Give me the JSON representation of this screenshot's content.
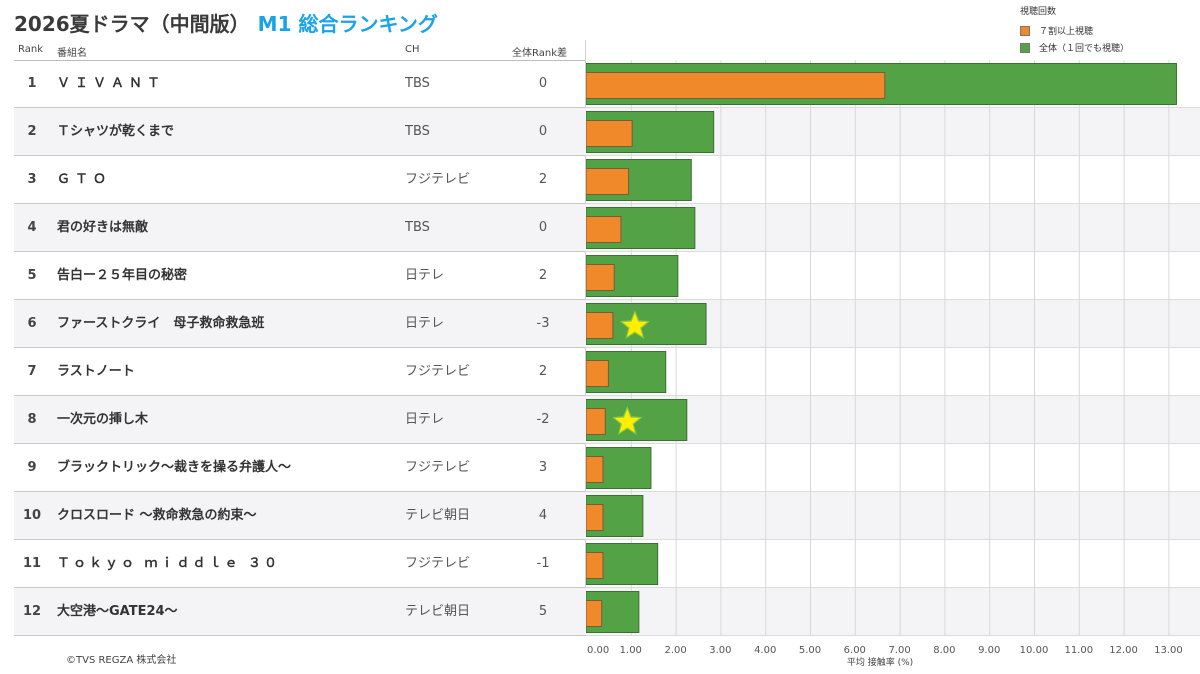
{
  "title": {
    "main": "2026夏ドラマ（中間版）",
    "accent": "M1 総合ランキング"
  },
  "legend": {
    "title": "視聴回数",
    "items": [
      {
        "label": "７割以上視聴",
        "color": "#f0892a"
      },
      {
        "label": "全体（１回でも視聴）",
        "color": "#54a246"
      }
    ]
  },
  "headers": {
    "rank": "Rank",
    "name": "番組名",
    "ch": "CH",
    "diff": "全体Rank差"
  },
  "rows": [
    {
      "rank": "1",
      "name": "ＶＩＶＡＮＴ",
      "ch": "TBS",
      "diff": "0"
    },
    {
      "rank": "2",
      "name": "Ｔシャツが乾くまで",
      "ch": "TBS",
      "diff": "0"
    },
    {
      "rank": "3",
      "name": "ＧＴＯ",
      "ch": "フジテレビ",
      "diff": "2"
    },
    {
      "rank": "4",
      "name": "君の好きは無敵",
      "ch": "TBS",
      "diff": "0"
    },
    {
      "rank": "5",
      "name": "告白ー２５年目の秘密",
      "ch": "日テレ",
      "diff": "2"
    },
    {
      "rank": "6",
      "name": "ファーストクライ　母子救命救急班",
      "ch": "日テレ",
      "diff": "-3"
    },
    {
      "rank": "7",
      "name": "ラストノート",
      "ch": "フジテレビ",
      "diff": "2"
    },
    {
      "rank": "8",
      "name": "一次元の挿し木",
      "ch": "日テレ",
      "diff": "-2"
    },
    {
      "rank": "9",
      "name": "ブラックトリック～裁きを操る弁護人～",
      "ch": "フジテレビ",
      "diff": "3"
    },
    {
      "rank": "10",
      "name": "クロスロード ～救命救急の約束～",
      "ch": "テレビ朝日",
      "diff": "4"
    },
    {
      "rank": "11",
      "name": "Ｔｏｋｙｏ ｍｉｄｄｌｅ ３０",
      "ch": "フジテレビ",
      "diff": "-1"
    },
    {
      "rank": "12",
      "name": "大空港～GATE24～",
      "ch": "テレビ朝日",
      "diff": "5"
    }
  ],
  "chart_data": {
    "type": "bar",
    "orientation": "horizontal",
    "xlabel": "平均 接触率 (%)",
    "xlim": [
      0,
      13.8
    ],
    "xticks": [
      "0.00",
      "1.00",
      "2.00",
      "3.00",
      "4.00",
      "5.00",
      "6.00",
      "7.00",
      "8.00",
      "9.00",
      "10.00",
      "11.00",
      "12.00",
      "13.00"
    ],
    "categories": [
      "ＶＩＶＡＮＴ",
      "Ｔシャツが乾くまで",
      "ＧＴＯ",
      "君の好きは無敵",
      "告白ー２５年目の秘密",
      "ファーストクライ　母子救命救急班",
      "ラストノート",
      "一次元の挿し木",
      "ブラックトリック～裁きを操る弁護人～",
      "クロスロード ～救命救急の約束～",
      "Ｔｏｋｙｏ ｍｉｄｄｌｅ ３０",
      "大空港～GATE24～"
    ],
    "series": [
      {
        "name": "全体（１回でも視聴）",
        "color": "#54a246",
        "values": [
          13.18,
          2.85,
          2.35,
          2.43,
          2.05,
          2.68,
          1.78,
          2.25,
          1.45,
          1.27,
          1.6,
          1.18
        ]
      },
      {
        "name": "７割以上視聴",
        "color": "#f0892a",
        "values": [
          6.67,
          1.03,
          0.95,
          0.78,
          0.63,
          0.6,
          0.5,
          0.43,
          0.38,
          0.38,
          0.38,
          0.35
        ]
      }
    ],
    "stars": [
      5,
      7
    ],
    "star_color": "#ffee00",
    "grid": true
  },
  "copyright": "©TVS REGZA 株式会社"
}
